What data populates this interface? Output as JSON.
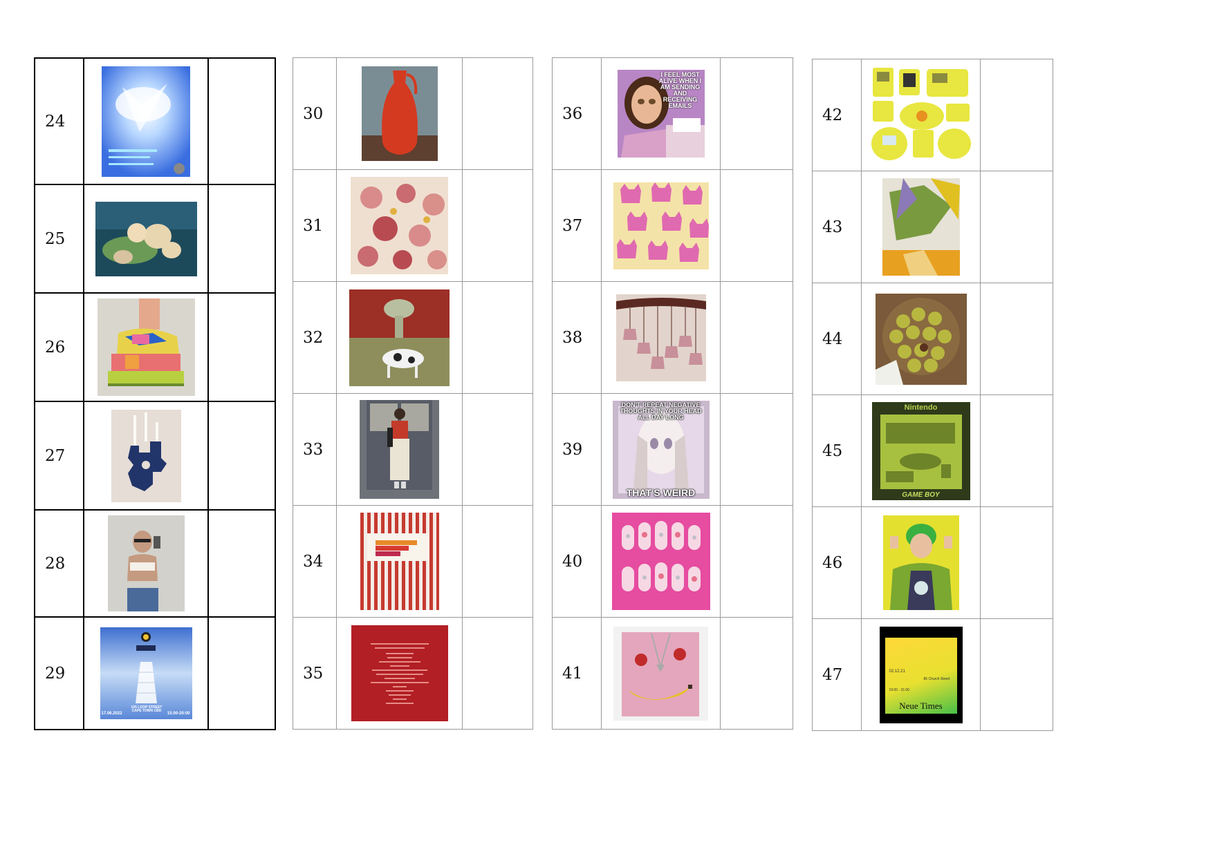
{
  "tables": [
    {
      "rows": [
        {
          "num": "24",
          "image": "party-flyer-angel-blue"
        },
        {
          "num": "25",
          "image": "painting-figures-blue-green"
        },
        {
          "num": "26",
          "image": "sculptural-sneaker-shoe"
        },
        {
          "num": "27",
          "image": "blue-ceramic-candle-holder"
        },
        {
          "num": "28",
          "image": "mirror-selfie-sunglasses"
        },
        {
          "num": "29",
          "image": "heaven-stairs-event-flyer"
        }
      ],
      "flyer_29": {
        "date": "17.06.2022",
        "venue": "105 LOOP STREET\nCAPE TOWN CBD",
        "time": "15:00-20:00"
      }
    },
    {
      "rows": [
        {
          "num": "30",
          "image": "red-textured-vase"
        },
        {
          "num": "31",
          "image": "ceramic-floral-relief-pink"
        },
        {
          "num": "32",
          "image": "cow-and-broccoli-painting"
        },
        {
          "num": "33",
          "image": "street-style-person-door"
        },
        {
          "num": "34",
          "image": "striped-bedding-pillow"
        },
        {
          "num": "35",
          "image": "red-poem-text-card"
        }
      ]
    },
    {
      "rows": [
        {
          "num": "36",
          "image": "bratz-emails-meme"
        },
        {
          "num": "37",
          "image": "pink-cats-pattern"
        },
        {
          "num": "38",
          "image": "pink-pendant-lamps"
        },
        {
          "num": "39",
          "image": "anime-negative-thoughts-meme"
        },
        {
          "num": "40",
          "image": "pink-nail-art-set"
        },
        {
          "num": "41",
          "image": "pink-banana-strawberry-art"
        }
      ],
      "meme_36": "I FEEL MOST ALIVE WHEN I AM SENDING AND RECEIVING EMAILS",
      "meme_39_top": "DON'T REPEAT NEGATIVE THOUGHTS IN YOUR HEAD ALL DAY LONG",
      "meme_39_bottom": "THAT'S WEIRD"
    },
    {
      "rows": [
        {
          "num": "42",
          "image": "yellow-game-consoles"
        },
        {
          "num": "43",
          "image": "yellow-anime-collage"
        },
        {
          "num": "44",
          "image": "chestnuts-basket"
        },
        {
          "num": "45",
          "image": "nintendo-gameboy-poster"
        },
        {
          "num": "46",
          "image": "green-hair-portrait"
        },
        {
          "num": "47",
          "image": "neue-times-poster"
        }
      ],
      "poster_45_top": "Nintendo",
      "poster_45_bottom": "GAME BOY",
      "poster_47_title": "Neue Times",
      "poster_47_date": "02.12.21",
      "poster_47_address": "86 Church Street",
      "poster_47_time": "19:00 - 21:00"
    }
  ]
}
